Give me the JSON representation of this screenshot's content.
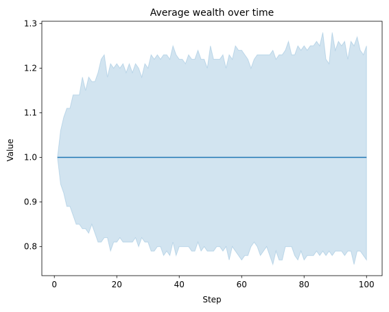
{
  "chart_data": {
    "type": "line",
    "title": "Average wealth over time",
    "xlabel": "Step",
    "ylabel": "Value",
    "xlim": [
      -4,
      105
    ],
    "ylim": [
      0.735,
      1.305
    ],
    "x_ticks": [
      0,
      20,
      40,
      60,
      80,
      100
    ],
    "y_ticks": [
      0.8,
      0.9,
      1.0,
      1.1,
      1.2,
      1.3
    ],
    "x_tick_labels": [
      "0",
      "20",
      "40",
      "60",
      "80",
      "100"
    ],
    "y_tick_labels": [
      "0.8",
      "0.9",
      "1.0",
      "1.1",
      "1.2",
      "1.3"
    ],
    "grid": false,
    "legend": "none",
    "colors": {
      "line": "#1f77b4",
      "band": "#1f77b4",
      "band_opacity": 0.2
    },
    "x": [
      1,
      2,
      3,
      4,
      5,
      6,
      7,
      8,
      9,
      10,
      11,
      12,
      13,
      14,
      15,
      16,
      17,
      18,
      19,
      20,
      21,
      22,
      23,
      24,
      25,
      26,
      27,
      28,
      29,
      30,
      31,
      32,
      33,
      34,
      35,
      36,
      37,
      38,
      39,
      40,
      41,
      42,
      43,
      44,
      45,
      46,
      47,
      48,
      49,
      50,
      51,
      52,
      53,
      54,
      55,
      56,
      57,
      58,
      59,
      60,
      61,
      62,
      63,
      64,
      65,
      66,
      67,
      68,
      69,
      70,
      71,
      72,
      73,
      74,
      75,
      76,
      77,
      78,
      79,
      80,
      81,
      82,
      83,
      84,
      85,
      86,
      87,
      88,
      89,
      90,
      91,
      92,
      93,
      94,
      95,
      96,
      97,
      98,
      99,
      100
    ],
    "series": [
      {
        "values": [
          1.0,
          1.0,
          1.0,
          1.0,
          1.0,
          1.0,
          1.0,
          1.0,
          1.0,
          1.0,
          1.0,
          1.0,
          1.0,
          1.0,
          1.0,
          1.0,
          1.0,
          1.0,
          1.0,
          1.0,
          1.0,
          1.0,
          1.0,
          1.0,
          1.0,
          1.0,
          1.0,
          1.0,
          1.0,
          1.0,
          1.0,
          1.0,
          1.0,
          1.0,
          1.0,
          1.0,
          1.0,
          1.0,
          1.0,
          1.0,
          1.0,
          1.0,
          1.0,
          1.0,
          1.0,
          1.0,
          1.0,
          1.0,
          1.0,
          1.0,
          1.0,
          1.0,
          1.0,
          1.0,
          1.0,
          1.0,
          1.0,
          1.0,
          1.0,
          1.0,
          1.0,
          1.0,
          1.0,
          1.0,
          1.0,
          1.0,
          1.0,
          1.0,
          1.0,
          1.0,
          1.0,
          1.0,
          1.0,
          1.0,
          1.0,
          1.0,
          1.0,
          1.0,
          1.0,
          1.0,
          1.0,
          1.0,
          1.0,
          1.0,
          1.0,
          1.0,
          1.0,
          1.0,
          1.0,
          1.0,
          1.0,
          1.0,
          1.0,
          1.0,
          1.0,
          1.0,
          1.0,
          1.0,
          1.0,
          1.0
        ],
        "upper": [
          1.0,
          1.06,
          1.09,
          1.11,
          1.11,
          1.14,
          1.14,
          1.14,
          1.18,
          1.15,
          1.18,
          1.17,
          1.17,
          1.19,
          1.22,
          1.23,
          1.18,
          1.21,
          1.2,
          1.21,
          1.2,
          1.21,
          1.19,
          1.21,
          1.19,
          1.21,
          1.2,
          1.18,
          1.21,
          1.2,
          1.23,
          1.22,
          1.23,
          1.22,
          1.23,
          1.23,
          1.22,
          1.25,
          1.23,
          1.22,
          1.22,
          1.21,
          1.23,
          1.22,
          1.22,
          1.24,
          1.22,
          1.22,
          1.2,
          1.25,
          1.22,
          1.22,
          1.22,
          1.23,
          1.2,
          1.23,
          1.22,
          1.25,
          1.24,
          1.24,
          1.23,
          1.22,
          1.2,
          1.22,
          1.23,
          1.23,
          1.23,
          1.23,
          1.23,
          1.24,
          1.22,
          1.23,
          1.23,
          1.24,
          1.26,
          1.23,
          1.23,
          1.25,
          1.24,
          1.25,
          1.24,
          1.25,
          1.25,
          1.26,
          1.25,
          1.28,
          1.22,
          1.21,
          1.28,
          1.24,
          1.26,
          1.25,
          1.26,
          1.22,
          1.26,
          1.25,
          1.27,
          1.24,
          1.23,
          1.25
        ],
        "lower": [
          1.0,
          0.94,
          0.92,
          0.89,
          0.89,
          0.87,
          0.85,
          0.85,
          0.84,
          0.84,
          0.83,
          0.85,
          0.83,
          0.81,
          0.81,
          0.82,
          0.82,
          0.79,
          0.81,
          0.81,
          0.82,
          0.81,
          0.81,
          0.81,
          0.81,
          0.82,
          0.8,
          0.82,
          0.81,
          0.81,
          0.79,
          0.79,
          0.8,
          0.8,
          0.78,
          0.79,
          0.78,
          0.81,
          0.78,
          0.8,
          0.8,
          0.8,
          0.8,
          0.79,
          0.79,
          0.81,
          0.79,
          0.8,
          0.79,
          0.79,
          0.79,
          0.8,
          0.8,
          0.79,
          0.8,
          0.77,
          0.8,
          0.79,
          0.78,
          0.77,
          0.78,
          0.78,
          0.8,
          0.81,
          0.8,
          0.78,
          0.79,
          0.8,
          0.78,
          0.76,
          0.79,
          0.77,
          0.77,
          0.8,
          0.8,
          0.8,
          0.78,
          0.77,
          0.79,
          0.77,
          0.78,
          0.78,
          0.78,
          0.79,
          0.78,
          0.79,
          0.78,
          0.79,
          0.78,
          0.79,
          0.79,
          0.79,
          0.78,
          0.79,
          0.79,
          0.76,
          0.79,
          0.79,
          0.78,
          0.77
        ]
      }
    ]
  }
}
